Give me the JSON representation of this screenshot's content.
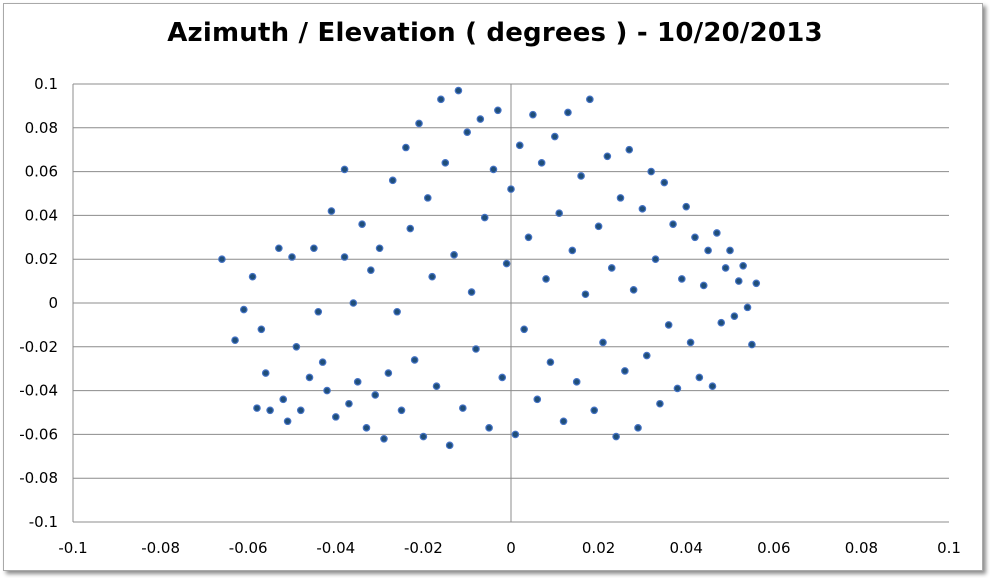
{
  "chart_data": {
    "type": "scatter",
    "title": "Azimuth / Elevation ( degrees ) - 10/20/2013",
    "xlabel": "",
    "ylabel": "",
    "xlim": [
      -0.1,
      0.1
    ],
    "ylim": [
      -0.1,
      0.1
    ],
    "x_ticks": [
      "-0.1",
      "-0.08",
      "-0.06",
      "-0.04",
      "-0.02",
      "0",
      "0.02",
      "0.04",
      "0.06",
      "0.08",
      "0.1"
    ],
    "y_ticks": [
      "0.1",
      "0.08",
      "0.06",
      "0.04",
      "0.02",
      "0",
      "-0.02",
      "-0.04",
      "-0.06",
      "-0.08",
      "-0.1"
    ],
    "grid": "horizontal",
    "marker_color": "#1f4e79",
    "marker_stroke": "#4472c4",
    "series": [
      {
        "points": [
          [
            -0.066,
            0.02
          ],
          [
            -0.063,
            -0.017
          ],
          [
            -0.061,
            -0.003
          ],
          [
            -0.059,
            0.012
          ],
          [
            -0.058,
            -0.048
          ],
          [
            -0.057,
            -0.012
          ],
          [
            -0.056,
            -0.032
          ],
          [
            -0.055,
            -0.049
          ],
          [
            -0.053,
            0.025
          ],
          [
            -0.052,
            -0.044
          ],
          [
            -0.051,
            -0.054
          ],
          [
            -0.05,
            0.021
          ],
          [
            -0.049,
            -0.02
          ],
          [
            -0.048,
            -0.049
          ],
          [
            -0.046,
            -0.034
          ],
          [
            -0.045,
            0.025
          ],
          [
            -0.044,
            -0.004
          ],
          [
            -0.043,
            -0.027
          ],
          [
            -0.042,
            -0.04
          ],
          [
            -0.041,
            0.042
          ],
          [
            -0.04,
            -0.052
          ],
          [
            -0.038,
            0.021
          ],
          [
            -0.038,
            0.061
          ],
          [
            -0.037,
            -0.046
          ],
          [
            -0.036,
            0.0
          ],
          [
            -0.035,
            -0.036
          ],
          [
            -0.034,
            0.036
          ],
          [
            -0.033,
            -0.057
          ],
          [
            -0.032,
            0.015
          ],
          [
            -0.031,
            -0.042
          ],
          [
            -0.03,
            0.025
          ],
          [
            -0.029,
            -0.062
          ],
          [
            -0.028,
            -0.032
          ],
          [
            -0.027,
            0.056
          ],
          [
            -0.026,
            -0.004
          ],
          [
            -0.025,
            -0.049
          ],
          [
            -0.024,
            0.071
          ],
          [
            -0.023,
            0.034
          ],
          [
            -0.022,
            -0.026
          ],
          [
            -0.021,
            0.082
          ],
          [
            -0.02,
            -0.061
          ],
          [
            -0.019,
            0.048
          ],
          [
            -0.018,
            0.012
          ],
          [
            -0.017,
            -0.038
          ],
          [
            -0.016,
            0.093
          ],
          [
            -0.015,
            0.064
          ],
          [
            -0.014,
            -0.065
          ],
          [
            -0.013,
            0.022
          ],
          [
            -0.012,
            0.097
          ],
          [
            -0.011,
            -0.048
          ],
          [
            -0.01,
            0.078
          ],
          [
            -0.009,
            0.005
          ],
          [
            -0.008,
            -0.021
          ],
          [
            -0.007,
            0.084
          ],
          [
            -0.006,
            0.039
          ],
          [
            -0.005,
            -0.057
          ],
          [
            -0.004,
            0.061
          ],
          [
            -0.003,
            0.088
          ],
          [
            -0.002,
            -0.034
          ],
          [
            -0.001,
            0.018
          ],
          [
            0.0,
            0.052
          ],
          [
            0.001,
            -0.06
          ],
          [
            0.002,
            0.072
          ],
          [
            0.003,
            -0.012
          ],
          [
            0.004,
            0.03
          ],
          [
            0.005,
            0.086
          ],
          [
            0.006,
            -0.044
          ],
          [
            0.007,
            0.064
          ],
          [
            0.008,
            0.011
          ],
          [
            0.009,
            -0.027
          ],
          [
            0.01,
            0.076
          ],
          [
            0.011,
            0.041
          ],
          [
            0.012,
            -0.054
          ],
          [
            0.013,
            0.087
          ],
          [
            0.014,
            0.024
          ],
          [
            0.015,
            -0.036
          ],
          [
            0.016,
            0.058
          ],
          [
            0.017,
            0.004
          ],
          [
            0.018,
            0.093
          ],
          [
            0.019,
            -0.049
          ],
          [
            0.02,
            0.035
          ],
          [
            0.021,
            -0.018
          ],
          [
            0.022,
            0.067
          ],
          [
            0.023,
            0.016
          ],
          [
            0.024,
            -0.061
          ],
          [
            0.025,
            0.048
          ],
          [
            0.026,
            -0.031
          ],
          [
            0.027,
            0.07
          ],
          [
            0.028,
            0.006
          ],
          [
            0.029,
            -0.057
          ],
          [
            0.03,
            0.043
          ],
          [
            0.031,
            -0.024
          ],
          [
            0.032,
            0.06
          ],
          [
            0.033,
            0.02
          ],
          [
            0.034,
            -0.046
          ],
          [
            0.035,
            0.055
          ],
          [
            0.036,
            -0.01
          ],
          [
            0.037,
            0.036
          ],
          [
            0.038,
            -0.039
          ],
          [
            0.039,
            0.011
          ],
          [
            0.04,
            0.044
          ],
          [
            0.041,
            -0.018
          ],
          [
            0.042,
            0.03
          ],
          [
            0.043,
            -0.034
          ],
          [
            0.044,
            0.008
          ],
          [
            0.045,
            0.024
          ],
          [
            0.046,
            -0.038
          ],
          [
            0.047,
            0.032
          ],
          [
            0.048,
            -0.009
          ],
          [
            0.049,
            0.016
          ],
          [
            0.05,
            0.024
          ],
          [
            0.051,
            -0.006
          ],
          [
            0.052,
            0.01
          ],
          [
            0.053,
            0.017
          ],
          [
            0.054,
            -0.002
          ],
          [
            0.055,
            -0.019
          ],
          [
            0.056,
            0.009
          ]
        ]
      }
    ]
  }
}
